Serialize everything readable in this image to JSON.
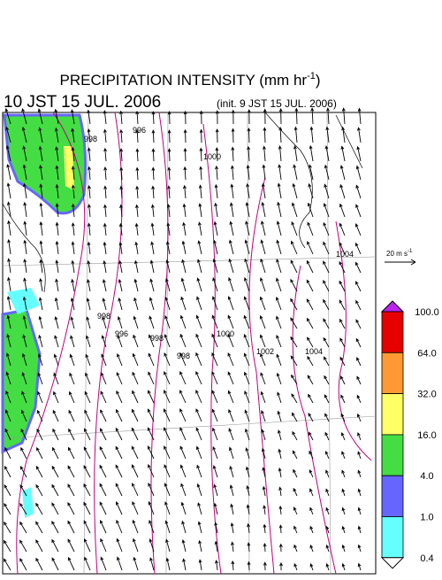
{
  "header": {
    "title": "PRECIPITATION INTENSITY (mm hr",
    "title_exponent": "-1",
    "title_close": ")",
    "valid_time": "10 JST 15 JUL. 2006",
    "init_time": "(init. 9 JST 15 JUL. 2006)"
  },
  "vector_scale": {
    "label": "20 m s",
    "exponent": "-1"
  },
  "contour_labels": [
    "998",
    "1000",
    "996",
    "998",
    "996",
    "998",
    "998",
    "1000",
    "1002",
    "1004",
    "1004"
  ],
  "colorbar": {
    "levels": [
      {
        "value": 100,
        "label": "100.0"
      },
      {
        "value": 64,
        "label": "64.0"
      },
      {
        "value": 32,
        "label": "32.0"
      },
      {
        "value": 16,
        "label": "16.0"
      },
      {
        "value": 4,
        "label": "4.0"
      },
      {
        "value": 1,
        "label": "1.0"
      },
      {
        "value": 0.4,
        "label": "0.4"
      }
    ],
    "colors": [
      "#e60000",
      "#ff9933",
      "#ffff66",
      "#44dd44",
      "#6666ff",
      "#66ffff"
    ],
    "over_color": "#bb22ee",
    "under_color": "#ffffff"
  }
}
